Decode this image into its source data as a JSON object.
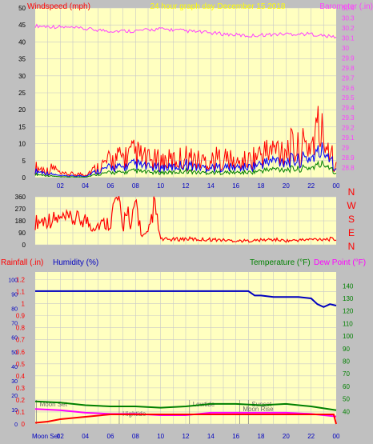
{
  "colors": {
    "panel_bg": "#c0c0c0",
    "plot_bg": "#ffffc0",
    "grid": "#c8c8c8",
    "gust": "#ff0000",
    "wind_avg": "#0000ff",
    "wind_low": "#008000",
    "barometer": "#ff40ff",
    "direction": "#ff0000",
    "humidity": "#0000c0",
    "temperature": "#008000",
    "dewpoint": "#ff00ff",
    "rain": "#ff0000",
    "rain_axis": "#ff0000",
    "humidity_axis": "#0000c0",
    "temp_axis": "#008000",
    "title": "#ffff00"
  },
  "chart_data": [
    {
      "type": "line",
      "title": "24 hour graph day   December 15 2018",
      "ylabel": "Windspeed (mph)",
      "y2label": "Barometer (.in)",
      "x_ticks": [
        "02",
        "04",
        "06",
        "08",
        "10",
        "12",
        "14",
        "16",
        "18",
        "20",
        "22",
        "00"
      ],
      "ylim": [
        0,
        50
      ],
      "y_ticks": [
        "0",
        "5",
        "10",
        "15",
        "20",
        "25",
        "30",
        "35",
        "40",
        "45",
        "50"
      ],
      "y2lim": [
        28.7,
        30.4
      ],
      "y2_ticks": [
        "28.8",
        "28.9",
        "29",
        "29.1",
        "29.2",
        "29.3",
        "29.4",
        "29.5",
        "29.6",
        "29.7",
        "29.8",
        "29.9",
        "30",
        "30.1",
        "30.2",
        "30.3",
        "30.4"
      ],
      "grid": true,
      "series": [
        {
          "kind": "gust",
          "x": [
            0,
            1,
            1.5,
            2,
            3,
            4,
            5,
            6,
            7,
            8,
            9,
            10,
            11,
            12,
            13,
            14,
            15,
            16,
            17,
            18,
            19,
            20,
            21,
            22,
            22.5,
            23,
            23.5,
            24
          ],
          "values": [
            3,
            2,
            3,
            1,
            1,
            1,
            3,
            5,
            6,
            7,
            5,
            5,
            5,
            6,
            5,
            5,
            6,
            4,
            5,
            7,
            8,
            9,
            8,
            10,
            14,
            12,
            10,
            3
          ]
        },
        {
          "kind": "avg",
          "x": [
            0,
            2,
            4,
            5,
            6,
            7,
            8,
            9,
            10,
            11,
            12,
            13,
            14,
            15,
            16,
            17,
            18,
            19,
            20,
            21,
            22,
            22.5,
            23,
            23.5,
            24
          ],
          "values": [
            2,
            0.5,
            0.5,
            2,
            3,
            3,
            4,
            3,
            3,
            3,
            4,
            3,
            3,
            3,
            3,
            3,
            4,
            5,
            5,
            5,
            6,
            7,
            8,
            7,
            2
          ]
        },
        {
          "kind": "low",
          "x": [
            0,
            2,
            4,
            5,
            6,
            7,
            8,
            9,
            10,
            11,
            12,
            13,
            14,
            15,
            16,
            17,
            18,
            19,
            20,
            21,
            22,
            22.5,
            23,
            23.5,
            24
          ],
          "values": [
            1,
            0.2,
            0.2,
            1,
            1.5,
            1.5,
            2,
            1.5,
            1.5,
            1.5,
            2,
            1.5,
            1.5,
            1.5,
            1.5,
            1.5,
            2,
            2.5,
            2.5,
            2.5,
            3,
            3.5,
            4,
            3.5,
            1
          ]
        },
        {
          "kind": "barometer",
          "x": [
            0,
            2,
            4,
            6,
            8,
            10,
            12,
            14,
            16,
            17,
            18,
            20,
            22,
            23,
            24
          ],
          "values": [
            30.22,
            30.21,
            30.19,
            30.17,
            30.17,
            30.19,
            30.17,
            30.15,
            30.13,
            30.12,
            30.13,
            30.14,
            30.14,
            30.12,
            30.11
          ]
        }
      ]
    },
    {
      "type": "line",
      "y_ticks": [
        "0",
        "90",
        "180",
        "270",
        "360"
      ],
      "ylim": [
        0,
        360
      ],
      "right_labels": [
        "N",
        "W",
        "S",
        "E",
        "N"
      ],
      "series": [
        {
          "kind": "direction",
          "x": [
            0,
            0.5,
            1,
            2,
            3,
            4,
            4.5,
            5,
            5.5,
            6,
            6.3,
            6.6,
            7,
            7.3,
            7.6,
            8,
            8.5,
            9,
            9.5,
            10,
            11,
            12,
            13,
            14,
            15,
            16,
            17,
            18,
            19,
            20,
            21,
            22,
            23,
            24
          ],
          "values": [
            170,
            180,
            190,
            190,
            190,
            190,
            140,
            150,
            160,
            170,
            300,
            340,
            100,
            340,
            90,
            340,
            60,
            80,
            300,
            40,
            40,
            45,
            40,
            40,
            35,
            30,
            30,
            35,
            40,
            30,
            35,
            40,
            45,
            40
          ]
        }
      ]
    },
    {
      "type": "line",
      "ylabel": "Rainfall (.in)",
      "ylabel2": "Humidity (%)",
      "y2label": "Temperature (°F)",
      "y2label2": "Dew Point (°F)",
      "x_ticks": [
        "02",
        "04",
        "06",
        "08",
        "10",
        "12",
        "14",
        "16",
        "18",
        "20",
        "22",
        "00"
      ],
      "x_first_label": "Moon Set",
      "rain_ticks": [
        "0",
        "0.1",
        "0.2",
        "0.3",
        "0.4",
        "0.5",
        "0.6",
        "0.7",
        "0.8",
        "0.9",
        "1",
        "1.1",
        "1.2"
      ],
      "rainlim": [
        0,
        1.2
      ],
      "humidity_ticks": [
        "0",
        "10",
        "20",
        "30",
        "40",
        "50",
        "60",
        "70",
        "80",
        "90",
        "100"
      ],
      "humiditylim": [
        0,
        100
      ],
      "temp_ticks": [
        "40",
        "50",
        "60",
        "70",
        "80",
        "90",
        "100",
        "110",
        "120",
        "130",
        "140"
      ],
      "templim": [
        30,
        145
      ],
      "annotations": [
        {
          "text": "Moon Set",
          "x": 0.1
        },
        {
          "text": "Hightide",
          "x": 6.7
        },
        {
          "text": "Lowtide",
          "x": 12.3
        },
        {
          "text": "Moon Rise",
          "x": 16.3
        },
        {
          "text": "Sunset",
          "x": 17.0
        }
      ],
      "series": [
        {
          "kind": "humidity",
          "x": [
            0,
            2,
            4,
            6,
            8,
            10,
            12,
            14,
            16,
            17,
            17.5,
            18,
            19,
            20,
            21,
            22,
            22.5,
            23,
            23.5,
            24
          ],
          "values": [
            92,
            92,
            92,
            92,
            92,
            92,
            92,
            92,
            92,
            92,
            89,
            89,
            88,
            88,
            88,
            87,
            83,
            81,
            83,
            82
          ]
        },
        {
          "kind": "temperature",
          "x": [
            0,
            2,
            4,
            6,
            8,
            10,
            12,
            14,
            16,
            18,
            20,
            22,
            24
          ],
          "values": [
            48,
            47,
            45,
            44,
            44,
            43,
            44,
            46,
            46,
            45,
            46,
            44,
            41
          ]
        },
        {
          "kind": "dewpoint",
          "x": [
            0,
            2,
            4,
            6,
            8,
            10,
            12,
            14,
            16,
            18,
            20,
            22,
            24
          ],
          "values": [
            42,
            41,
            39,
            38,
            38,
            37,
            37,
            39,
            39,
            39,
            39,
            38,
            36
          ]
        },
        {
          "kind": "rain",
          "x": [
            0,
            1,
            2,
            4,
            6,
            8,
            10,
            12,
            14,
            16,
            18,
            20,
            22,
            23.8,
            24
          ],
          "values": [
            0.01,
            0.02,
            0.04,
            0.06,
            0.08,
            0.08,
            0.08,
            0.08,
            0.08,
            0.08,
            0.08,
            0.08,
            0.08,
            0.08,
            0
          ]
        }
      ]
    }
  ]
}
